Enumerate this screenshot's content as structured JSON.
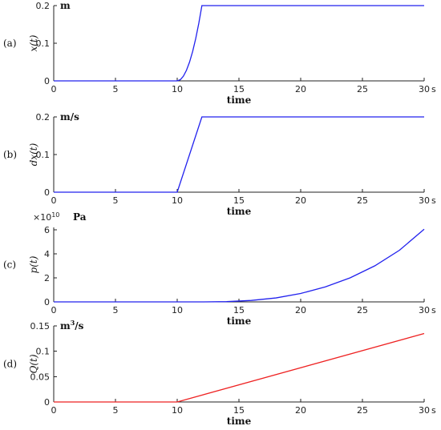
{
  "chart_data": [
    {
      "type": "line",
      "panel_label": "(a)",
      "ylabel": "x(t)",
      "unit": "m",
      "xlabel": "time",
      "x_unit": "s",
      "xlim": [
        0,
        30
      ],
      "ylim": [
        0,
        0.2
      ],
      "xticks": [
        "0",
        "5",
        "10",
        "15",
        "20",
        "25",
        "30"
      ],
      "yticks": [
        "0",
        "0.1",
        "0.2"
      ],
      "series": [
        {
          "color": "#2222ee",
          "x": [
            0,
            10,
            10.25,
            10.5,
            10.75,
            11,
            11.25,
            11.5,
            11.75,
            12,
            30
          ],
          "y": [
            0,
            0,
            0.0031,
            0.0125,
            0.0281,
            0.05,
            0.0781,
            0.1125,
            0.1531,
            0.2,
            0.2
          ]
        }
      ]
    },
    {
      "type": "line",
      "panel_label": "(b)",
      "ylabel": "dx(t)",
      "unit": "m/s",
      "xlabel": "time",
      "x_unit": "s",
      "xlim": [
        0,
        30
      ],
      "ylim": [
        0,
        0.2
      ],
      "xticks": [
        "0",
        "5",
        "10",
        "15",
        "20",
        "25",
        "30"
      ],
      "yticks": [
        "0",
        "0.1",
        "0.2"
      ],
      "series": [
        {
          "color": "#2222ee",
          "x": [
            0,
            10,
            12,
            30
          ],
          "y": [
            0,
            0,
            0.2,
            0.2
          ]
        }
      ]
    },
    {
      "type": "line",
      "panel_label": "(c)",
      "ylabel": "p(t)",
      "unit": "Pa",
      "exponent": "×10",
      "exponent_power": "10",
      "xlabel": "time",
      "x_unit": "s",
      "xlim": [
        0,
        30
      ],
      "ylim": [
        0,
        6.2
      ],
      "xticks": [
        "0",
        "5",
        "10",
        "15",
        "20",
        "25",
        "30"
      ],
      "yticks": [
        "0",
        "2",
        "4",
        "6"
      ],
      "series": [
        {
          "color": "#2222ee",
          "x": [
            0,
            12,
            14,
            16,
            18,
            20,
            22,
            24,
            26,
            28,
            30
          ],
          "y": [
            0,
            0,
            0.02,
            0.12,
            0.33,
            0.7,
            1.25,
            2.0,
            3.0,
            4.3,
            6.05
          ]
        }
      ]
    },
    {
      "type": "line",
      "panel_label": "(d)",
      "ylabel": "Q(t)",
      "unit": "m",
      "unit_sup": "3",
      "unit_tail": "/s",
      "xlabel": "time",
      "x_unit": "s",
      "xlim": [
        0,
        30
      ],
      "ylim": [
        0,
        0.15
      ],
      "xticks": [
        "0",
        "5",
        "10",
        "15",
        "20",
        "25",
        "30"
      ],
      "yticks": [
        "0",
        "0.05",
        "0.1",
        "0.15"
      ],
      "series": [
        {
          "color": "#ee2222",
          "x": [
            0,
            10,
            30
          ],
          "y": [
            0,
            0,
            0.135
          ]
        }
      ]
    }
  ]
}
